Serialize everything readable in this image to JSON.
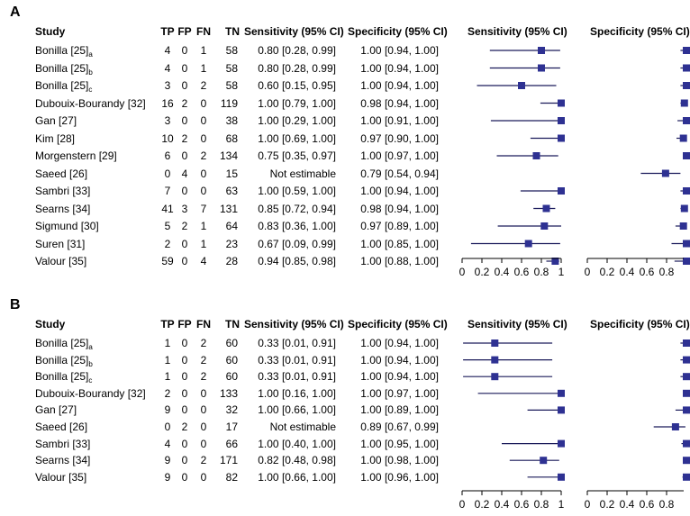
{
  "headers": {
    "study": "Study",
    "tp": "TP",
    "fp": "FP",
    "fn": "FN",
    "tn": "TN",
    "sens": "Sensitivity (95% CI)",
    "spec": "Specificity (95% CI)",
    "sens_plot": "Sensitivity (95% CI)",
    "spec_plot": "Specificity (95% CI)"
  },
  "colors": {
    "marker": "#2e3192",
    "line": "#1a1a5a"
  },
  "chart_data": [
    {
      "type": "forest",
      "panel": "A",
      "x_ticks": [
        "0",
        "0.2",
        "0.4",
        "0.6",
        "0.8",
        "1"
      ],
      "spec_ticks": [
        "0",
        "0.2",
        "0.4",
        "0.6",
        "0.8"
      ],
      "xlim": [
        0,
        1
      ],
      "rows": [
        {
          "study": "Bonilla [25]",
          "sub": "a",
          "tp": "4",
          "fp": "0",
          "fn": "1",
          "tn": "58",
          "sens_text": "0.80 [0.28, 0.99]",
          "spec_text": "1.00 [0.94, 1.00]",
          "sens": 0.8,
          "sens_lo": 0.28,
          "sens_hi": 0.99,
          "spec": 1.0,
          "spec_lo": 0.94,
          "spec_hi": 1.0
        },
        {
          "study": "Bonilla [25]",
          "sub": "b",
          "tp": "4",
          "fp": "0",
          "fn": "1",
          "tn": "58",
          "sens_text": "0.80 [0.28, 0.99]",
          "spec_text": "1.00 [0.94, 1.00]",
          "sens": 0.8,
          "sens_lo": 0.28,
          "sens_hi": 0.99,
          "spec": 1.0,
          "spec_lo": 0.94,
          "spec_hi": 1.0
        },
        {
          "study": "Bonilla [25]",
          "sub": "c",
          "tp": "3",
          "fp": "0",
          "fn": "2",
          "tn": "58",
          "sens_text": "0.60 [0.15, 0.95]",
          "spec_text": "1.00 [0.94, 1.00]",
          "sens": 0.6,
          "sens_lo": 0.15,
          "sens_hi": 0.95,
          "spec": 1.0,
          "spec_lo": 0.94,
          "spec_hi": 1.0
        },
        {
          "study": "Dubouix-Bourandy [32]",
          "sub": "",
          "tp": "16",
          "fp": "2",
          "fn": "0",
          "tn": "119",
          "sens_text": "1.00 [0.79, 1.00]",
          "spec_text": "0.98 [0.94, 1.00]",
          "sens": 1.0,
          "sens_lo": 0.79,
          "sens_hi": 1.0,
          "spec": 0.98,
          "spec_lo": 0.94,
          "spec_hi": 1.0
        },
        {
          "study": "Gan [27]",
          "sub": "",
          "tp": "3",
          "fp": "0",
          "fn": "0",
          "tn": "38",
          "sens_text": "1.00 [0.29, 1.00]",
          "spec_text": "1.00 [0.91, 1.00]",
          "sens": 1.0,
          "sens_lo": 0.29,
          "sens_hi": 1.0,
          "spec": 1.0,
          "spec_lo": 0.91,
          "spec_hi": 1.0
        },
        {
          "study": "Kim [28]",
          "sub": "",
          "tp": "10",
          "fp": "2",
          "fn": "0",
          "tn": "68",
          "sens_text": "1.00 [0.69, 1.00]",
          "spec_text": "0.97 [0.90, 1.00]",
          "sens": 1.0,
          "sens_lo": 0.69,
          "sens_hi": 1.0,
          "spec": 0.97,
          "spec_lo": 0.9,
          "spec_hi": 1.0
        },
        {
          "study": "Morgenstern [29]",
          "sub": "",
          "tp": "6",
          "fp": "0",
          "fn": "2",
          "tn": "134",
          "sens_text": "0.75 [0.35, 0.97]",
          "spec_text": "1.00 [0.97, 1.00]",
          "sens": 0.75,
          "sens_lo": 0.35,
          "sens_hi": 0.97,
          "spec": 1.0,
          "spec_lo": 0.97,
          "spec_hi": 1.0
        },
        {
          "study": "Saeed [26]",
          "sub": "",
          "tp": "0",
          "fp": "4",
          "fn": "0",
          "tn": "15",
          "sens_text": "Not estimable",
          "spec_text": "0.79 [0.54, 0.94]",
          "sens": null,
          "sens_lo": null,
          "sens_hi": null,
          "spec": 0.79,
          "spec_lo": 0.54,
          "spec_hi": 0.94
        },
        {
          "study": "Sambri [33]",
          "sub": "",
          "tp": "7",
          "fp": "0",
          "fn": "0",
          "tn": "63",
          "sens_text": "1.00 [0.59, 1.00]",
          "spec_text": "1.00 [0.94, 1.00]",
          "sens": 1.0,
          "sens_lo": 0.59,
          "sens_hi": 1.0,
          "spec": 1.0,
          "spec_lo": 0.94,
          "spec_hi": 1.0
        },
        {
          "study": "Searns [34]",
          "sub": "",
          "tp": "41",
          "fp": "3",
          "fn": "7",
          "tn": "131",
          "sens_text": "0.85 [0.72, 0.94]",
          "spec_text": "0.98 [0.94, 1.00]",
          "sens": 0.85,
          "sens_lo": 0.72,
          "sens_hi": 0.94,
          "spec": 0.98,
          "spec_lo": 0.94,
          "spec_hi": 1.0
        },
        {
          "study": "Sigmund [30]",
          "sub": "",
          "tp": "5",
          "fp": "2",
          "fn": "1",
          "tn": "64",
          "sens_text": "0.83 [0.36, 1.00]",
          "spec_text": "0.97 [0.89, 1.00]",
          "sens": 0.83,
          "sens_lo": 0.36,
          "sens_hi": 1.0,
          "spec": 0.97,
          "spec_lo": 0.89,
          "spec_hi": 1.0
        },
        {
          "study": "Suren [31]",
          "sub": "",
          "tp": "2",
          "fp": "0",
          "fn": "1",
          "tn": "23",
          "sens_text": "0.67 [0.09, 0.99]",
          "spec_text": "1.00 [0.85, 1.00]",
          "sens": 0.67,
          "sens_lo": 0.09,
          "sens_hi": 0.99,
          "spec": 1.0,
          "spec_lo": 0.85,
          "spec_hi": 1.0
        },
        {
          "study": "Valour [35]",
          "sub": "",
          "tp": "59",
          "fp": "0",
          "fn": "4",
          "tn": "28",
          "sens_text": "0.94 [0.85, 0.98]",
          "spec_text": "1.00 [0.88, 1.00]",
          "sens": 0.94,
          "sens_lo": 0.85,
          "sens_hi": 0.98,
          "spec": 1.0,
          "spec_lo": 0.88,
          "spec_hi": 1.0
        }
      ]
    },
    {
      "type": "forest",
      "panel": "B",
      "x_ticks": [
        "0",
        "0.2",
        "0.4",
        "0.6",
        "0.8",
        "1"
      ],
      "spec_ticks": [
        "0",
        "0.2",
        "0.4",
        "0.6",
        "0.8"
      ],
      "xlim": [
        0,
        1
      ],
      "rows": [
        {
          "study": "Bonilla [25]",
          "sub": "a",
          "tp": "1",
          "fp": "0",
          "fn": "2",
          "tn": "60",
          "sens_text": "0.33 [0.01, 0.91]",
          "spec_text": "1.00 [0.94, 1.00]",
          "sens": 0.33,
          "sens_lo": 0.01,
          "sens_hi": 0.91,
          "spec": 1.0,
          "spec_lo": 0.94,
          "spec_hi": 1.0
        },
        {
          "study": "Bonilla [25]",
          "sub": "b",
          "tp": "1",
          "fp": "0",
          "fn": "2",
          "tn": "60",
          "sens_text": "0.33 [0.01, 0.91]",
          "spec_text": "1.00 [0.94, 1.00]",
          "sens": 0.33,
          "sens_lo": 0.01,
          "sens_hi": 0.91,
          "spec": 1.0,
          "spec_lo": 0.94,
          "spec_hi": 1.0
        },
        {
          "study": "Bonilla [25]",
          "sub": "c",
          "tp": "1",
          "fp": "0",
          "fn": "2",
          "tn": "60",
          "sens_text": "0.33 [0.01, 0.91]",
          "spec_text": "1.00 [0.94, 1.00]",
          "sens": 0.33,
          "sens_lo": 0.01,
          "sens_hi": 0.91,
          "spec": 1.0,
          "spec_lo": 0.94,
          "spec_hi": 1.0
        },
        {
          "study": "Dubouix-Bourandy [32]",
          "sub": "",
          "tp": "2",
          "fp": "0",
          "fn": "0",
          "tn": "133",
          "sens_text": "1.00 [0.16, 1.00]",
          "spec_text": "1.00 [0.97, 1.00]",
          "sens": 1.0,
          "sens_lo": 0.16,
          "sens_hi": 1.0,
          "spec": 1.0,
          "spec_lo": 0.97,
          "spec_hi": 1.0
        },
        {
          "study": "Gan [27]",
          "sub": "",
          "tp": "9",
          "fp": "0",
          "fn": "0",
          "tn": "32",
          "sens_text": "1.00 [0.66, 1.00]",
          "spec_text": "1.00 [0.89, 1.00]",
          "sens": 1.0,
          "sens_lo": 0.66,
          "sens_hi": 1.0,
          "spec": 1.0,
          "spec_lo": 0.89,
          "spec_hi": 1.0
        },
        {
          "study": "Saeed [26]",
          "sub": "",
          "tp": "0",
          "fp": "2",
          "fn": "0",
          "tn": "17",
          "sens_text": "Not estimable",
          "spec_text": "0.89 [0.67, 0.99]",
          "sens": null,
          "sens_lo": null,
          "sens_hi": null,
          "spec": 0.89,
          "spec_lo": 0.67,
          "spec_hi": 0.99
        },
        {
          "study": "Sambri [33]",
          "sub": "",
          "tp": "4",
          "fp": "0",
          "fn": "0",
          "tn": "66",
          "sens_text": "1.00 [0.40, 1.00]",
          "spec_text": "1.00 [0.95, 1.00]",
          "sens": 1.0,
          "sens_lo": 0.4,
          "sens_hi": 1.0,
          "spec": 1.0,
          "spec_lo": 0.95,
          "spec_hi": 1.0
        },
        {
          "study": "Searns [34]",
          "sub": "",
          "tp": "9",
          "fp": "0",
          "fn": "2",
          "tn": "171",
          "sens_text": "0.82 [0.48, 0.98]",
          "spec_text": "1.00 [0.98, 1.00]",
          "sens": 0.82,
          "sens_lo": 0.48,
          "sens_hi": 0.98,
          "spec": 1.0,
          "spec_lo": 0.98,
          "spec_hi": 1.0
        },
        {
          "study": "Valour [35]",
          "sub": "",
          "tp": "9",
          "fp": "0",
          "fn": "0",
          "tn": "82",
          "sens_text": "1.00 [0.66, 1.00]",
          "spec_text": "1.00 [0.96, 1.00]",
          "sens": 1.0,
          "sens_lo": 0.66,
          "sens_hi": 1.0,
          "spec": 1.0,
          "spec_lo": 0.96,
          "spec_hi": 1.0
        }
      ]
    }
  ]
}
